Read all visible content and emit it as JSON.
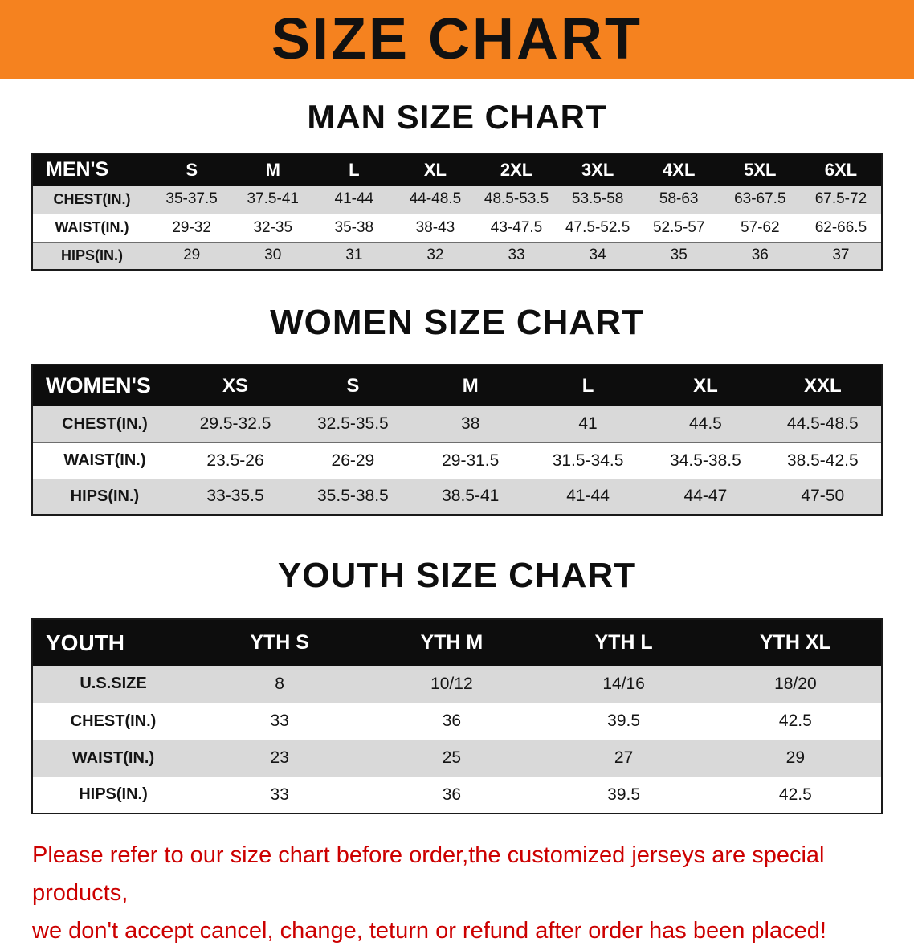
{
  "banner": {
    "title": "SIZE CHART",
    "bg_color": "#F5821F",
    "text_color": "#111111"
  },
  "sections": [
    {
      "heading": "MAN SIZE CHART",
      "table": {
        "header": [
          "MEN'S",
          "S",
          "M",
          "L",
          "XL",
          "2XL",
          "3XL",
          "4XL",
          "5XL",
          "6XL"
        ],
        "rows": [
          [
            "CHEST(IN.)",
            "35-37.5",
            "37.5-41",
            "41-44",
            "44-48.5",
            "48.5-53.5",
            "53.5-58",
            "58-63",
            "63-67.5",
            "67.5-72"
          ],
          [
            "WAIST(IN.)",
            "29-32",
            "32-35",
            "35-38",
            "38-43",
            "43-47.5",
            "47.5-52.5",
            "52.5-57",
            "57-62",
            "62-66.5"
          ],
          [
            "HIPS(IN.)",
            "29",
            "30",
            "31",
            "32",
            "33",
            "34",
            "35",
            "36",
            "37"
          ]
        ]
      }
    },
    {
      "heading": "WOMEN SIZE CHART",
      "table": {
        "header": [
          "WOMEN'S",
          "XS",
          "S",
          "M",
          "L",
          "XL",
          "XXL"
        ],
        "rows": [
          [
            "CHEST(IN.)",
            "29.5-32.5",
            "32.5-35.5",
            "38",
            "41",
            "44.5",
            "44.5-48.5"
          ],
          [
            "WAIST(IN.)",
            "23.5-26",
            "26-29",
            "29-31.5",
            "31.5-34.5",
            "34.5-38.5",
            "38.5-42.5"
          ],
          [
            "HIPS(IN.)",
            "33-35.5",
            "35.5-38.5",
            "38.5-41",
            "41-44",
            "44-47",
            "47-50"
          ]
        ]
      }
    },
    {
      "heading": "YOUTH SIZE CHART",
      "table": {
        "header": [
          "YOUTH",
          "YTH S",
          "YTH M",
          "YTH L",
          "YTH XL"
        ],
        "rows": [
          [
            "U.S.SIZE",
            "8",
            "10/12",
            "14/16",
            "18/20"
          ],
          [
            "CHEST(IN.)",
            "33",
            "36",
            "39.5",
            "42.5"
          ],
          [
            "WAIST(IN.)",
            "23",
            "25",
            "27",
            "29"
          ],
          [
            "HIPS(IN.)",
            "33",
            "36",
            "39.5",
            "42.5"
          ]
        ]
      }
    }
  ],
  "disclaimer": {
    "line1": "Please refer to our size chart before order,the customized jerseys are special products,",
    "line2": "we don't accept cancel, change, teturn or refund after order has been placed!",
    "color": "#CC0000"
  }
}
